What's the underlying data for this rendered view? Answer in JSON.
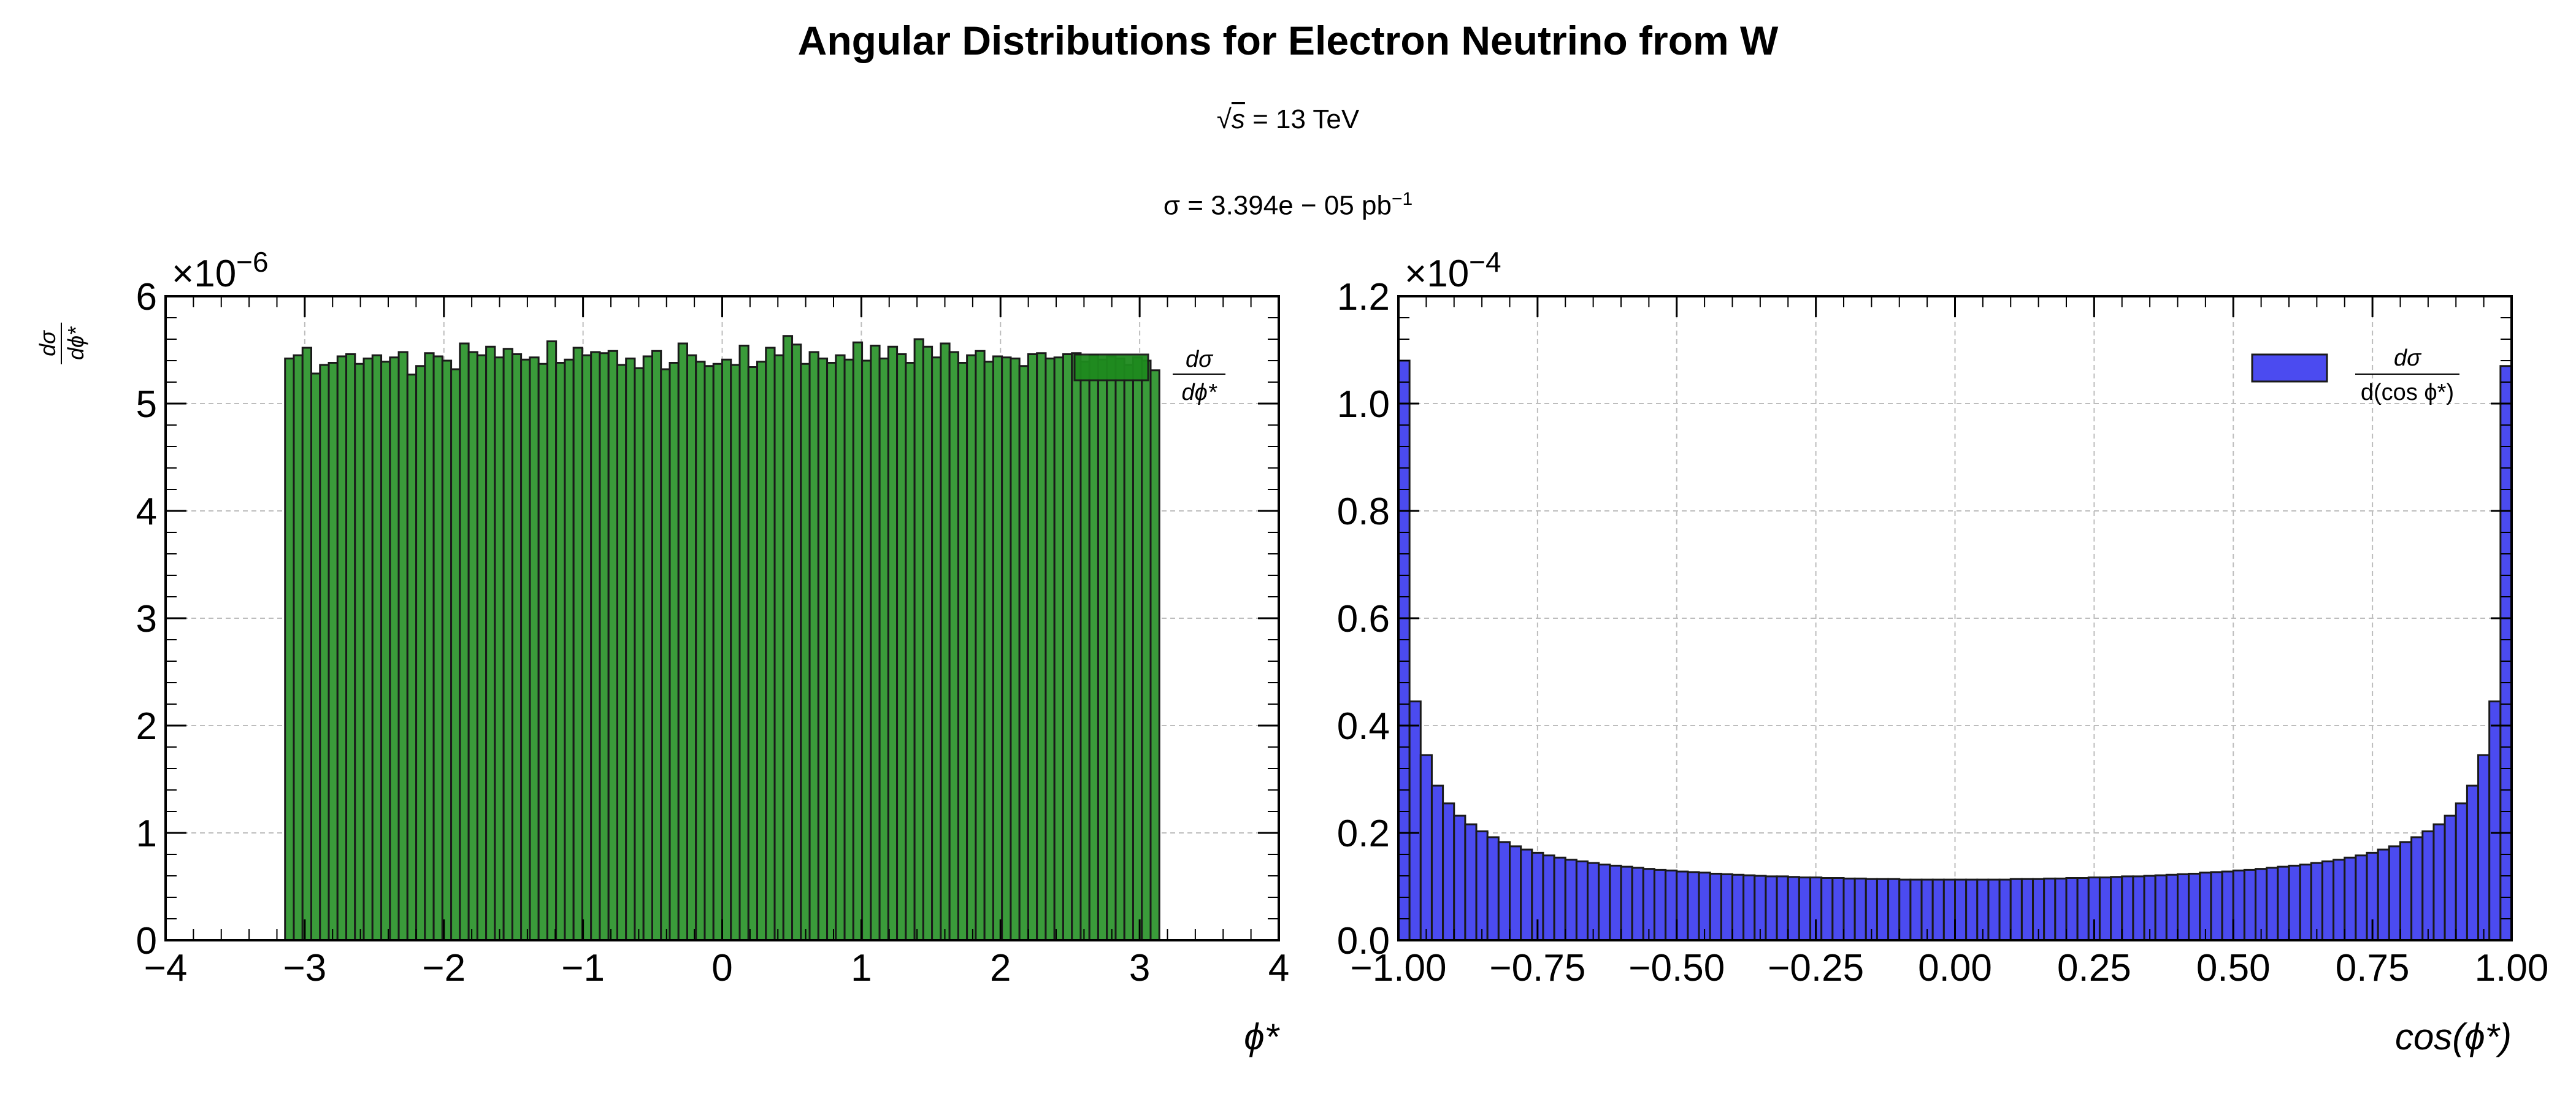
{
  "title": "Angular Distributions for Electron Neutrino from W",
  "subtitle_sqrt_s": {
    "symbol": "s",
    "rest": " = 13 TeV"
  },
  "subtitle_sigma": {
    "main": "σ = 3.394e − 05 pb",
    "sup": "−1"
  },
  "colors": {
    "left_fill": "#3a9b3a",
    "left_legend": "#1e8a1e",
    "right_fill": "#4b4bf0",
    "edge": "#1a1a1a",
    "grid": "#bdbdbd"
  },
  "chart_data": [
    {
      "type": "bar",
      "title": "",
      "xlabel": "ϕ*",
      "ylabel": "dσ/dϕ*",
      "x_range": [
        -4,
        4
      ],
      "ylim": [
        0,
        6e-06
      ],
      "y_multiplier_label": "×10",
      "y_multiplier_exp": "−6",
      "x_ticks": [
        -4,
        -3,
        -2,
        -1,
        0,
        1,
        2,
        3,
        4
      ],
      "x_tick_labels": [
        "−4",
        "−3",
        "−2",
        "−1",
        "0",
        "1",
        "2",
        "3",
        "4"
      ],
      "y_ticks": [
        0,
        1,
        2,
        3,
        4,
        5,
        6
      ],
      "y_tick_labels": [
        "0",
        "1",
        "2",
        "3",
        "4",
        "5",
        "6"
      ],
      "grid": true,
      "legend": {
        "label": "dσ/dϕ*",
        "placement": "top-right"
      },
      "bin_range": [
        -3.1416,
        3.1416
      ],
      "values_e6": [
        5.42,
        5.45,
        5.52,
        5.28,
        5.36,
        5.38,
        5.44,
        5.46,
        5.37,
        5.42,
        5.45,
        5.39,
        5.43,
        5.48,
        5.27,
        5.35,
        5.47,
        5.44,
        5.4,
        5.32,
        5.56,
        5.48,
        5.45,
        5.53,
        5.43,
        5.51,
        5.46,
        5.41,
        5.43,
        5.37,
        5.58,
        5.38,
        5.41,
        5.52,
        5.45,
        5.48,
        5.47,
        5.49,
        5.36,
        5.42,
        5.33,
        5.44,
        5.49,
        5.32,
        5.38,
        5.56,
        5.45,
        5.39,
        5.35,
        5.37,
        5.41,
        5.36,
        5.54,
        5.34,
        5.39,
        5.52,
        5.45,
        5.63,
        5.55,
        5.37,
        5.48,
        5.42,
        5.38,
        5.45,
        5.41,
        5.57,
        5.4,
        5.54,
        5.42,
        5.53,
        5.46,
        5.38,
        5.6,
        5.53,
        5.43,
        5.56,
        5.48,
        5.38,
        5.45,
        5.49,
        5.39,
        5.44,
        5.43,
        5.42,
        5.35,
        5.46,
        5.47,
        5.42,
        5.43,
        5.46,
        5.47,
        5.39,
        5.45,
        5.41,
        5.44,
        5.42,
        5.36,
        5.43,
        5.4,
        5.31
      ]
    },
    {
      "type": "bar",
      "title": "",
      "xlabel": "cos(ϕ*)",
      "ylabel": "",
      "x_range": [
        -1,
        1
      ],
      "ylim": [
        0,
        0.00012
      ],
      "y_multiplier_label": "×10",
      "y_multiplier_exp": "−4",
      "x_ticks": [
        -1,
        -0.75,
        -0.5,
        -0.25,
        0,
        0.25,
        0.5,
        0.75,
        1
      ],
      "x_tick_labels": [
        "−1.00",
        "−0.75",
        "−0.50",
        "−0.25",
        "0.00",
        "0.25",
        "0.50",
        "0.75",
        "1.00"
      ],
      "y_ticks": [
        0,
        0.2,
        0.4,
        0.6,
        0.8,
        1.0,
        1.2
      ],
      "y_tick_labels": [
        "0.0",
        "0.2",
        "0.4",
        "0.6",
        "0.8",
        "1.0",
        "1.2"
      ],
      "grid": true,
      "legend": {
        "label": "dσ/d(cos ϕ*)",
        "placement": "top-right"
      },
      "bin_range": [
        -1,
        1
      ],
      "values_e4": [
        1.08,
        0.445,
        0.345,
        0.288,
        0.255,
        0.232,
        0.216,
        0.203,
        0.192,
        0.183,
        0.175,
        0.169,
        0.163,
        0.158,
        0.154,
        0.15,
        0.147,
        0.144,
        0.141,
        0.139,
        0.137,
        0.135,
        0.133,
        0.131,
        0.13,
        0.128,
        0.127,
        0.126,
        0.124,
        0.123,
        0.122,
        0.121,
        0.12,
        0.119,
        0.119,
        0.118,
        0.117,
        0.117,
        0.116,
        0.116,
        0.115,
        0.115,
        0.114,
        0.114,
        0.114,
        0.113,
        0.113,
        0.113,
        0.113,
        0.113,
        0.113,
        0.113,
        0.113,
        0.113,
        0.113,
        0.114,
        0.114,
        0.114,
        0.115,
        0.115,
        0.116,
        0.116,
        0.117,
        0.117,
        0.118,
        0.119,
        0.119,
        0.12,
        0.121,
        0.122,
        0.123,
        0.124,
        0.126,
        0.127,
        0.128,
        0.13,
        0.131,
        0.133,
        0.135,
        0.137,
        0.139,
        0.141,
        0.144,
        0.147,
        0.15,
        0.154,
        0.158,
        0.163,
        0.169,
        0.175,
        0.183,
        0.192,
        0.203,
        0.216,
        0.232,
        0.255,
        0.288,
        0.345,
        0.445,
        1.07
      ]
    }
  ]
}
